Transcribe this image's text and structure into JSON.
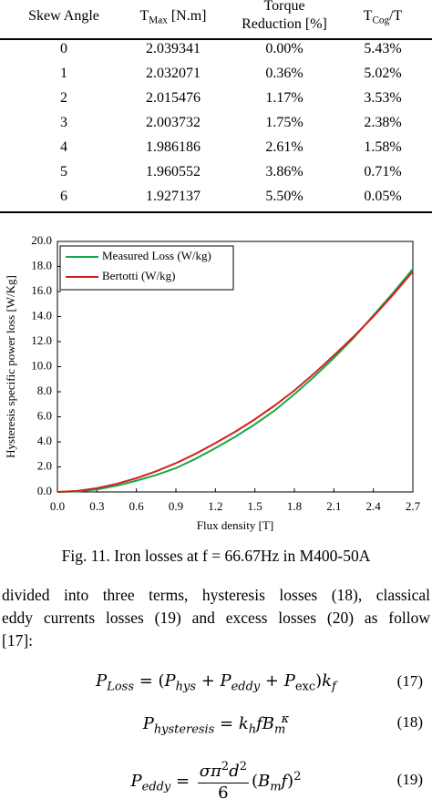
{
  "table": {
    "header": [
      [
        {
          "t": "Skew Angle",
          "s": "r"
        }
      ],
      [
        {
          "t": "T",
          "s": "r"
        },
        {
          "t": "Max",
          "s": "sub"
        },
        {
          "t": " [N.m]",
          "s": "r"
        }
      ],
      [
        {
          "t": "Torque",
          "s": "line"
        },
        {
          "t": "Reduction [%]",
          "s": "line"
        }
      ],
      [
        {
          "t": "T",
          "s": "r"
        },
        {
          "t": "Cog",
          "s": "sub"
        },
        {
          "t": "/T",
          "s": "r"
        }
      ]
    ],
    "rows": [
      [
        "0",
        "2.039341",
        "0.00%",
        "5.43%"
      ],
      [
        "1",
        "2.032071",
        "0.36%",
        "5.02%"
      ],
      [
        "2",
        "2.015476",
        "1.17%",
        "3.53%"
      ],
      [
        "3",
        "2.003732",
        "1.75%",
        "2.38%"
      ],
      [
        "4",
        "1.986186",
        "2.61%",
        "1.58%"
      ],
      [
        "5",
        "1.960552",
        "3.86%",
        "0.71%"
      ],
      [
        "6",
        "1.927137",
        "5.50%",
        "0.05%"
      ]
    ]
  },
  "chart_data": {
    "type": "line",
    "x_label": "Flux density [T]",
    "y_label": "Hysteresis specific power loss [W/Kg]",
    "x": [
      0,
      0.15,
      0.3,
      0.45,
      0.6,
      0.75,
      0.9,
      1.05,
      1.2,
      1.35,
      1.5,
      1.65,
      1.8,
      1.95,
      2.1,
      2.25,
      2.4,
      2.55,
      2.7
    ],
    "series": [
      {
        "name": "Measured Loss (W/kg)",
        "color": "#1aa64a",
        "values": [
          0,
          0.04,
          0.2,
          0.5,
          0.9,
          1.35,
          1.9,
          2.65,
          3.5,
          4.4,
          5.4,
          6.5,
          7.8,
          9.2,
          10.7,
          12.3,
          14.1,
          15.9,
          17.8
        ]
      },
      {
        "name": "Bertotti (W/kg)",
        "color": "#d42020",
        "values": [
          0,
          0.08,
          0.3,
          0.65,
          1.1,
          1.65,
          2.3,
          3.05,
          3.9,
          4.8,
          5.8,
          6.9,
          8.1,
          9.45,
          10.9,
          12.4,
          14.0,
          15.75,
          17.6
        ]
      }
    ],
    "xlim": [
      0,
      2.7
    ],
    "ylim": [
      0,
      20
    ],
    "xticks": [
      {
        "value": 0,
        "label": "0.0"
      },
      0.3,
      0.6,
      0.9,
      1.2,
      1.5,
      1.8,
      2.1,
      2.4,
      2.7
    ],
    "yticks": [
      {
        "value": 0,
        "label": "0.0"
      },
      {
        "value": 2,
        "label": "2.0"
      },
      {
        "value": 4,
        "label": "4.0"
      },
      {
        "value": 6,
        "label": "6.0"
      },
      {
        "value": 8,
        "label": "8.0"
      },
      {
        "value": 10,
        "label": "10.0"
      },
      {
        "value": 12,
        "label": "12.0"
      },
      {
        "value": 14,
        "label": "14.0"
      },
      {
        "value": 16,
        "label": "16.0"
      },
      {
        "value": 18,
        "label": "18.0"
      },
      {
        "value": 20,
        "label": "20.0"
      }
    ],
    "legend": "upper left"
  },
  "caption": "Fig. 11. Iron losses at f = 66.67Hz in M400-50A",
  "paragraph": [
    "divided into three terms, hysteresis losses (18), classical",
    "eddy currents losses (19) and excess losses (20) as follow",
    "[17]:"
  ],
  "equations": [
    {
      "parts": [
        {
          "t": "P",
          "s": "i"
        },
        {
          "t": "Loss",
          "s": "sub"
        },
        {
          "t": " = (",
          "s": "r"
        },
        {
          "t": "P",
          "s": "i"
        },
        {
          "t": "hys",
          "s": "sub"
        },
        {
          "t": " + ",
          "s": "r"
        },
        {
          "t": "P",
          "s": "i"
        },
        {
          "t": "eddy",
          "s": "sub"
        },
        {
          "t": " + ",
          "s": "r"
        },
        {
          "t": "P",
          "s": "i"
        },
        {
          "t": "exc",
          "s": "subr"
        },
        {
          "t": ")",
          "s": "r"
        },
        {
          "t": "k",
          "s": "i"
        },
        {
          "t": "f",
          "s": "sub"
        }
      ],
      "number": "(17)"
    },
    {
      "parts": [
        {
          "t": "P",
          "s": "i"
        },
        {
          "t": "hysteresis",
          "s": "sub"
        },
        {
          "t": " = ",
          "s": "r"
        },
        {
          "t": "k",
          "s": "i"
        },
        {
          "t": "h",
          "s": "sub"
        },
        {
          "t": "fB",
          "s": "i"
        },
        {
          "t": "m",
          "s": "sub"
        },
        {
          "t": "κ",
          "s": "supb"
        }
      ],
      "number": "(18)"
    },
    {
      "parts": [
        {
          "t": "P",
          "s": "i"
        },
        {
          "t": "eddy",
          "s": "sub"
        },
        {
          "t": " = ",
          "s": "r"
        },
        {
          "frac": {
            "num": [
              {
                "t": "σπ",
                "s": "i"
              },
              {
                "t": "2",
                "s": "sup"
              },
              {
                "t": "d",
                "s": "i"
              },
              {
                "t": "2",
                "s": "sup"
              }
            ],
            "den": [
              {
                "t": "6",
                "s": "r"
              }
            ]
          }
        },
        {
          "t": "(",
          "s": "r"
        },
        {
          "t": "B",
          "s": "i"
        },
        {
          "t": "m",
          "s": "sub"
        },
        {
          "t": "f",
          "s": "i"
        },
        {
          "t": ")",
          "s": "r"
        },
        {
          "t": "2",
          "s": "sup"
        }
      ],
      "number": "(19)"
    }
  ]
}
